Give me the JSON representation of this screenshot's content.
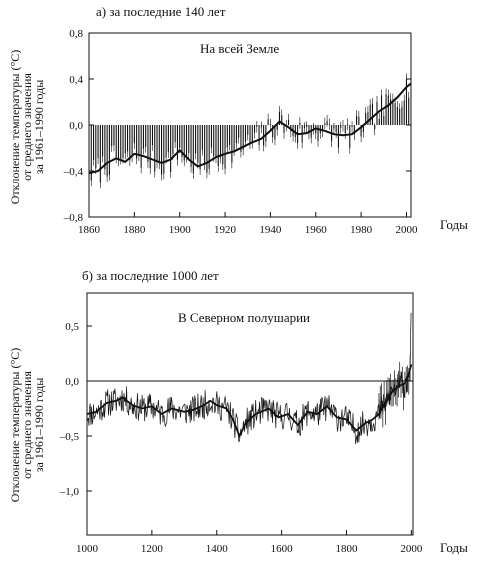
{
  "colors": {
    "ink": "#111111",
    "paper": "#ffffff"
  },
  "chart_data": [
    {
      "type": "bar",
      "panel_label": "а) за последние 140 лет",
      "inset_title": "На всей Земле",
      "ylabel_lines": [
        "Отклонение температуры (°С)",
        "от среднего значения",
        "за 1961–1990 годы"
      ],
      "xlabel": "Годы",
      "xlim": [
        1860,
        2002
      ],
      "ylim": [
        -0.8,
        0.8
      ],
      "xticks": [
        1860,
        1880,
        1900,
        1920,
        1940,
        1960,
        1980,
        2000
      ],
      "xtick_labels": [
        "1860",
        "1880",
        "1900",
        "1920",
        "1940",
        "1960",
        "1980",
        "2000"
      ],
      "yticks": [
        -0.8,
        -0.4,
        0.0,
        0.4,
        0.8
      ],
      "ytick_labels": [
        "–0,8",
        "–0,4",
        "0,0",
        "0,4",
        "0,8"
      ],
      "grid": false,
      "baseline": 0.0,
      "smooth_years": [
        1860,
        1864,
        1868,
        1872,
        1876,
        1880,
        1884,
        1888,
        1892,
        1896,
        1900,
        1904,
        1908,
        1912,
        1916,
        1920,
        1924,
        1928,
        1932,
        1936,
        1940,
        1944,
        1948,
        1952,
        1956,
        1960,
        1964,
        1968,
        1972,
        1976,
        1980,
        1984,
        1988,
        1992,
        1996,
        2000,
        2002
      ],
      "smooth_values": [
        -0.42,
        -0.4,
        -0.33,
        -0.29,
        -0.32,
        -0.25,
        -0.27,
        -0.3,
        -0.33,
        -0.3,
        -0.22,
        -0.3,
        -0.36,
        -0.33,
        -0.28,
        -0.25,
        -0.23,
        -0.19,
        -0.15,
        -0.12,
        -0.05,
        0.03,
        -0.02,
        -0.08,
        -0.07,
        -0.03,
        -0.05,
        -0.08,
        -0.09,
        -0.08,
        -0.02,
        0.05,
        0.12,
        0.17,
        0.24,
        0.33,
        0.36
      ],
      "bar_noise_amplitude": 0.13,
      "bar_seed": 7
    },
    {
      "type": "line",
      "panel_label": "б) за последние 1000 лет",
      "inset_title": "В Северном полушарии",
      "ylabel_lines": [
        "Отклонение температуры (°С)",
        "от среднего значения",
        "за 1961–1990 годы"
      ],
      "xlabel": "Годы",
      "xlim": [
        1000,
        2005
      ],
      "ylim": [
        -1.4,
        0.8
      ],
      "xticks": [
        1000,
        1200,
        1400,
        1600,
        1800,
        2000
      ],
      "xtick_labels": [
        "1000",
        "1200",
        "1400",
        "1600",
        "1800",
        "2000"
      ],
      "yticks": [
        -1.0,
        -0.5,
        0.0,
        0.5
      ],
      "ytick_labels": [
        "–1,0",
        "–0,5",
        "0,0",
        "0,5"
      ],
      "grid": false,
      "reference_line": 0.0,
      "smooth_years": [
        1000,
        1030,
        1060,
        1090,
        1110,
        1140,
        1170,
        1200,
        1230,
        1260,
        1300,
        1330,
        1360,
        1380,
        1400,
        1430,
        1450,
        1470,
        1490,
        1520,
        1560,
        1590,
        1620,
        1650,
        1680,
        1710,
        1740,
        1770,
        1800,
        1830,
        1860,
        1880,
        1900,
        1920,
        1940,
        1960,
        1980,
        1990,
        2000
      ],
      "smooth_values": [
        -0.3,
        -0.28,
        -0.2,
        -0.18,
        -0.15,
        -0.22,
        -0.25,
        -0.23,
        -0.3,
        -0.25,
        -0.28,
        -0.26,
        -0.22,
        -0.18,
        -0.22,
        -0.25,
        -0.35,
        -0.5,
        -0.38,
        -0.3,
        -0.25,
        -0.33,
        -0.3,
        -0.4,
        -0.28,
        -0.3,
        -0.23,
        -0.33,
        -0.35,
        -0.45,
        -0.38,
        -0.35,
        -0.3,
        -0.2,
        -0.1,
        -0.05,
        -0.02,
        0.05,
        0.15
      ],
      "noise_amplitude": 0.13,
      "noise_seed": 11,
      "errorbars_from_year": 1900,
      "recent_spike_values": [
        0.25,
        0.45,
        0.62
      ]
    }
  ]
}
